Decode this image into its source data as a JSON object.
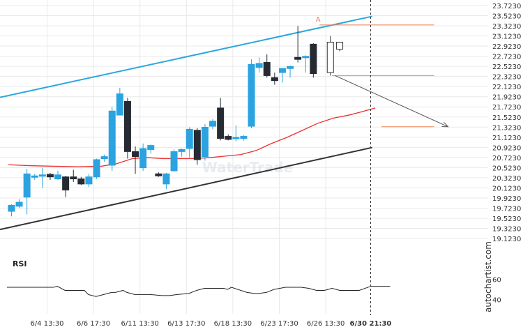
{
  "watermark": "autochartist.com",
  "logo_text": "WaterTrade",
  "colors": {
    "bull": "#2ba3e0",
    "bear": "#262b33",
    "upper_trend": "#2aa7e0",
    "lower_trend": "#333333",
    "ma": "#e8312f",
    "level": "#e9865c",
    "arrow": "#555555",
    "grid": "#e9e9e9"
  },
  "chart_data": {
    "type": "candlestick",
    "y_ticks": [
      "23.7230",
      "23.5230",
      "23.3230",
      "23.1230",
      "22.9230",
      "22.7230",
      "22.5230",
      "22.3230",
      "22.1230",
      "21.9230",
      "21.7230",
      "21.5230",
      "21.3230",
      "21.1230",
      "20.9230",
      "20.7230",
      "20.5230",
      "20.3230",
      "20.1230",
      "19.9230",
      "19.7230",
      "19.5230",
      "19.3230",
      "19.1230"
    ],
    "x_ticks": [
      "6/4 13:30",
      "6/6 17:30",
      "6/11 13:30",
      "6/13 17:30",
      "6/18 13:30",
      "6/23 17:30",
      "6/26 13:30",
      "6/30 21:30"
    ],
    "x_tick_slots": [
      5,
      11,
      17,
      23,
      29,
      35,
      41,
      46.8
    ],
    "ylim": [
      19.0,
      23.75
    ],
    "candles": [
      {
        "o": 19.66,
        "h": 19.8,
        "l": 19.56,
        "c": 19.78
      },
      {
        "o": 19.76,
        "h": 19.9,
        "l": 19.72,
        "c": 19.84
      },
      {
        "o": 19.94,
        "h": 20.5,
        "l": 19.6,
        "c": 20.4
      },
      {
        "o": 20.34,
        "h": 20.4,
        "l": 20.28,
        "c": 20.36
      },
      {
        "o": 20.36,
        "h": 20.52,
        "l": 20.12,
        "c": 20.38
      },
      {
        "o": 20.39,
        "h": 20.42,
        "l": 20.28,
        "c": 20.34
      },
      {
        "o": 20.3,
        "h": 20.46,
        "l": 20.28,
        "c": 20.38
      },
      {
        "o": 20.34,
        "h": 20.36,
        "l": 19.94,
        "c": 20.08
      },
      {
        "o": 20.34,
        "h": 20.48,
        "l": 20.24,
        "c": 20.3
      },
      {
        "o": 20.3,
        "h": 20.34,
        "l": 20.18,
        "c": 20.2
      },
      {
        "o": 20.2,
        "h": 20.4,
        "l": 20.14,
        "c": 20.34
      },
      {
        "o": 20.34,
        "h": 20.7,
        "l": 20.3,
        "c": 20.68
      },
      {
        "o": 20.7,
        "h": 20.78,
        "l": 20.64,
        "c": 20.74
      },
      {
        "o": 20.57,
        "h": 21.72,
        "l": 20.46,
        "c": 21.64
      },
      {
        "o": 21.56,
        "h": 22.1,
        "l": 21.56,
        "c": 21.98
      },
      {
        "o": 21.83,
        "h": 21.9,
        "l": 20.7,
        "c": 20.84
      },
      {
        "o": 20.84,
        "h": 20.94,
        "l": 20.4,
        "c": 20.74
      },
      {
        "o": 20.52,
        "h": 21.0,
        "l": 20.46,
        "c": 20.9
      },
      {
        "o": 20.88,
        "h": 20.98,
        "l": 20.8,
        "c": 20.96
      },
      {
        "o": 20.4,
        "h": 20.43,
        "l": 20.34,
        "c": 20.36
      },
      {
        "o": 20.2,
        "h": 20.42,
        "l": 20.1,
        "c": 20.4
      },
      {
        "o": 20.46,
        "h": 20.88,
        "l": 20.44,
        "c": 20.84
      },
      {
        "o": 20.84,
        "h": 20.9,
        "l": 20.74,
        "c": 20.88
      },
      {
        "o": 20.9,
        "h": 21.32,
        "l": 20.72,
        "c": 21.28
      },
      {
        "o": 21.26,
        "h": 21.3,
        "l": 20.58,
        "c": 20.68
      },
      {
        "o": 20.74,
        "h": 21.38,
        "l": 20.66,
        "c": 21.32
      },
      {
        "o": 21.34,
        "h": 21.48,
        "l": 21.28,
        "c": 21.44
      },
      {
        "o": 21.7,
        "h": 21.9,
        "l": 21.06,
        "c": 21.1
      },
      {
        "o": 21.14,
        "h": 21.18,
        "l": 21.06,
        "c": 21.08
      },
      {
        "o": 21.1,
        "h": 21.36,
        "l": 21.04,
        "c": 21.12
      },
      {
        "o": 21.1,
        "h": 21.16,
        "l": 21.06,
        "c": 21.14
      },
      {
        "o": 21.34,
        "h": 22.66,
        "l": 21.3,
        "c": 22.56
      },
      {
        "o": 22.5,
        "h": 22.7,
        "l": 22.4,
        "c": 22.58
      },
      {
        "o": 22.6,
        "h": 22.76,
        "l": 22.3,
        "c": 22.34
      },
      {
        "o": 22.3,
        "h": 22.4,
        "l": 22.16,
        "c": 22.24
      },
      {
        "o": 22.4,
        "h": 22.46,
        "l": 22.2,
        "c": 22.48
      },
      {
        "o": 22.48,
        "h": 22.54,
        "l": 22.3,
        "c": 22.52
      },
      {
        "o": 22.7,
        "h": 23.32,
        "l": 22.6,
        "c": 22.66
      },
      {
        "o": 22.7,
        "h": 22.74,
        "l": 22.4,
        "c": 22.72
      },
      {
        "o": 22.96,
        "h": 22.98,
        "l": 22.3,
        "c": 22.38
      },
      {
        "o": 22.4,
        "h": 23.12,
        "l": 22.34,
        "c": 23.0
      },
      {
        "o": 23.0,
        "h": 23.0,
        "l": 22.82,
        "c": 22.86
      }
    ],
    "candle_slots": [
      0.4,
      1.4,
      2.4,
      3.4,
      4.4,
      5.4,
      6.4,
      7.4,
      8.4,
      9.4,
      10.4,
      11.4,
      12.4,
      13.4,
      14.4,
      15.4,
      16.4,
      17.4,
      18.4,
      19.4,
      20.4,
      21.4,
      22.4,
      23.4,
      24.4,
      25.4,
      26.4,
      27.4,
      28.4,
      29.4,
      30.4,
      31.4,
      32.4,
      33.4,
      34.4,
      35.4,
      36.4,
      37.4,
      38.4,
      39.4,
      41.6,
      42.8
    ],
    "candle_hollow": [
      false,
      false,
      false,
      false,
      false,
      false,
      false,
      false,
      false,
      false,
      false,
      false,
      false,
      false,
      false,
      false,
      false,
      false,
      false,
      false,
      false,
      false,
      false,
      false,
      false,
      false,
      false,
      false,
      false,
      false,
      false,
      false,
      false,
      false,
      false,
      false,
      false,
      false,
      false,
      false,
      true,
      true
    ],
    "moving_average": {
      "slots": [
        0,
        3,
        6,
        9,
        12,
        14,
        16,
        18,
        20,
        22,
        24,
        26,
        28,
        30,
        32,
        34,
        36,
        38,
        40,
        42,
        44,
        45.5,
        47.4
      ],
      "values": [
        20.58,
        20.56,
        20.55,
        20.54,
        20.55,
        20.6,
        20.7,
        20.72,
        20.7,
        20.7,
        20.7,
        20.72,
        20.75,
        20.78,
        20.86,
        21.0,
        21.12,
        21.26,
        21.4,
        21.5,
        21.56,
        21.62,
        21.7
      ]
    },
    "upper_channel": {
      "slots": [
        0,
        47
      ],
      "values": [
        21.91,
        23.51
      ]
    },
    "lower_channel": {
      "slots": [
        0,
        47
      ],
      "values": [
        19.3,
        20.92
      ]
    },
    "levels": [
      {
        "value": 23.34,
        "from_slot": 40.2,
        "to_slot": 55
      },
      {
        "value": 22.34,
        "from_slot": 41.8,
        "to_slot": 55
      },
      {
        "value": 21.33,
        "from_slot": 48.2,
        "to_slot": 55
      }
    ],
    "forecast_arrow": {
      "from_slot": 42.2,
      "from_value": 22.34,
      "to_slot": 56.8,
      "to_value": 21.33
    },
    "pattern_point_label": "A",
    "pattern_point": {
      "slot": 40.2,
      "value": 23.38
    },
    "current_time_slot": 46.8,
    "rsi": {
      "label": "RSI",
      "y_ticks": [
        "60",
        "40"
      ],
      "ylim": [
        33,
        67
      ],
      "slots": [
        0,
        3,
        5,
        6,
        6.5,
        7.5,
        9,
        10,
        10.5,
        11.5,
        12.5,
        13.5,
        14,
        15,
        15.5,
        16.5,
        17.5,
        18.5,
        20,
        21,
        22,
        23.5,
        24.5,
        25.5,
        27,
        28,
        28.5,
        29,
        31,
        32,
        32.5,
        33.5,
        34.5,
        36,
        37,
        38,
        39,
        40,
        41,
        42,
        43,
        45.5,
        47,
        48,
        49.5
      ],
      "values": [
        52,
        52,
        52,
        52,
        53,
        49,
        49,
        49,
        45,
        43,
        45,
        47,
        47,
        49,
        47,
        45,
        45,
        45,
        44,
        44,
        45,
        46,
        49,
        51,
        51,
        51,
        50,
        52,
        47,
        46,
        46,
        47,
        50,
        52,
        52,
        52,
        51,
        49,
        49,
        51,
        49,
        49,
        53,
        53,
        53
      ]
    }
  }
}
